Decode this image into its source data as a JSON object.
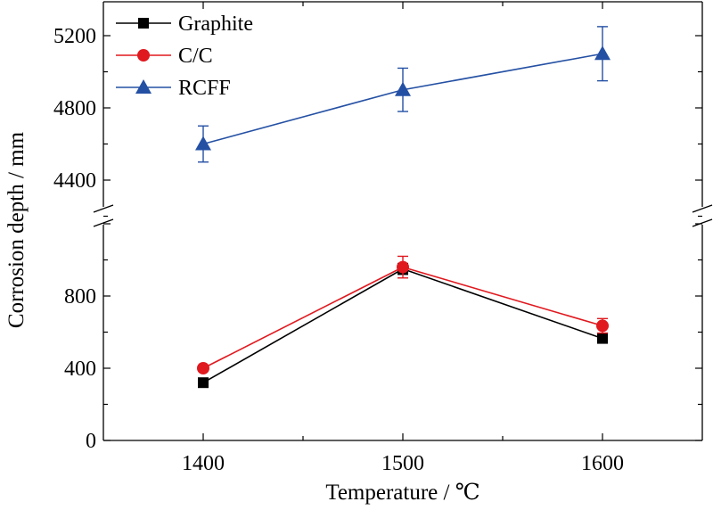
{
  "chart_data": {
    "type": "line",
    "xlabel": "Temperature / ℃",
    "ylabel": "Corrosion depth / mm",
    "x": [
      1400,
      1500,
      1600
    ],
    "xlim": [
      1350,
      1650
    ],
    "x_ticks": [
      1400,
      1500,
      1600
    ],
    "y_axis_break": true,
    "y_lower_range": [
      0,
      1200
    ],
    "y_upper_range": [
      4200,
      5400
    ],
    "y_ticks": [
      0,
      400,
      800,
      4400,
      4800,
      5200
    ],
    "legend_position": "top-left",
    "grid": false,
    "series": [
      {
        "name": "Graphite",
        "marker": "square",
        "color": "#000000",
        "values": [
          320,
          950,
          565
        ],
        "errors": [
          15,
          30,
          20
        ]
      },
      {
        "name": "C/C",
        "marker": "circle",
        "color": "#e0191f",
        "values": [
          400,
          960,
          635
        ],
        "errors": [
          15,
          60,
          40
        ]
      },
      {
        "name": "RCFF",
        "marker": "triangle",
        "color": "#2450a4",
        "values": [
          4600,
          4900,
          5100
        ],
        "errors": [
          100,
          120,
          150
        ]
      }
    ]
  }
}
